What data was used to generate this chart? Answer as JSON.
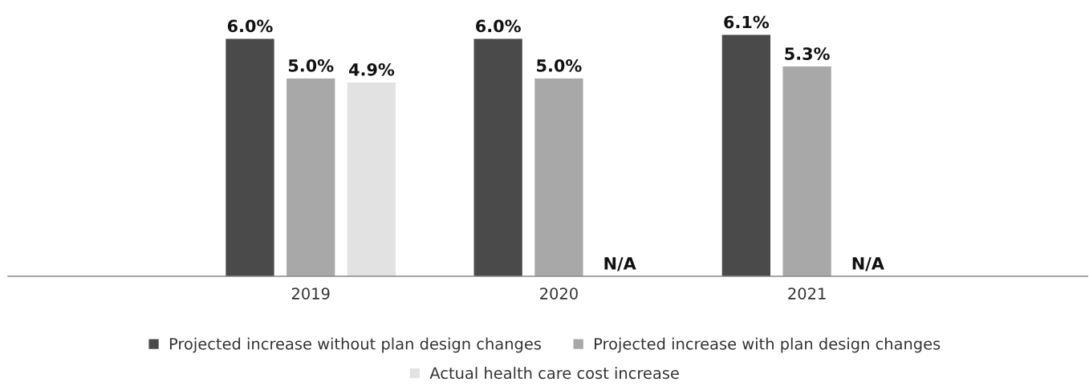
{
  "chart_data": {
    "type": "bar",
    "categories": [
      "2019",
      "2020",
      "2021"
    ],
    "series": [
      {
        "name": "Projected increase without plan design changes",
        "color": "#4a4a4a",
        "values": [
          6.0,
          6.0,
          6.1
        ],
        "value_labels": [
          "6.0%",
          "6.0%",
          "6.1%"
        ]
      },
      {
        "name": "Projected increase with plan design changes",
        "color": "#a8a8a8",
        "values": [
          5.0,
          5.0,
          5.3
        ],
        "value_labels": [
          "5.0%",
          "5.0%",
          "5.3%"
        ]
      },
      {
        "name": "Actual health care cost increase",
        "color": "#e2e2e2",
        "values": [
          4.9,
          null,
          null
        ],
        "value_labels": [
          "4.9%",
          "N/A",
          "N/A"
        ]
      }
    ],
    "legend": "bottom",
    "grid": false
  }
}
